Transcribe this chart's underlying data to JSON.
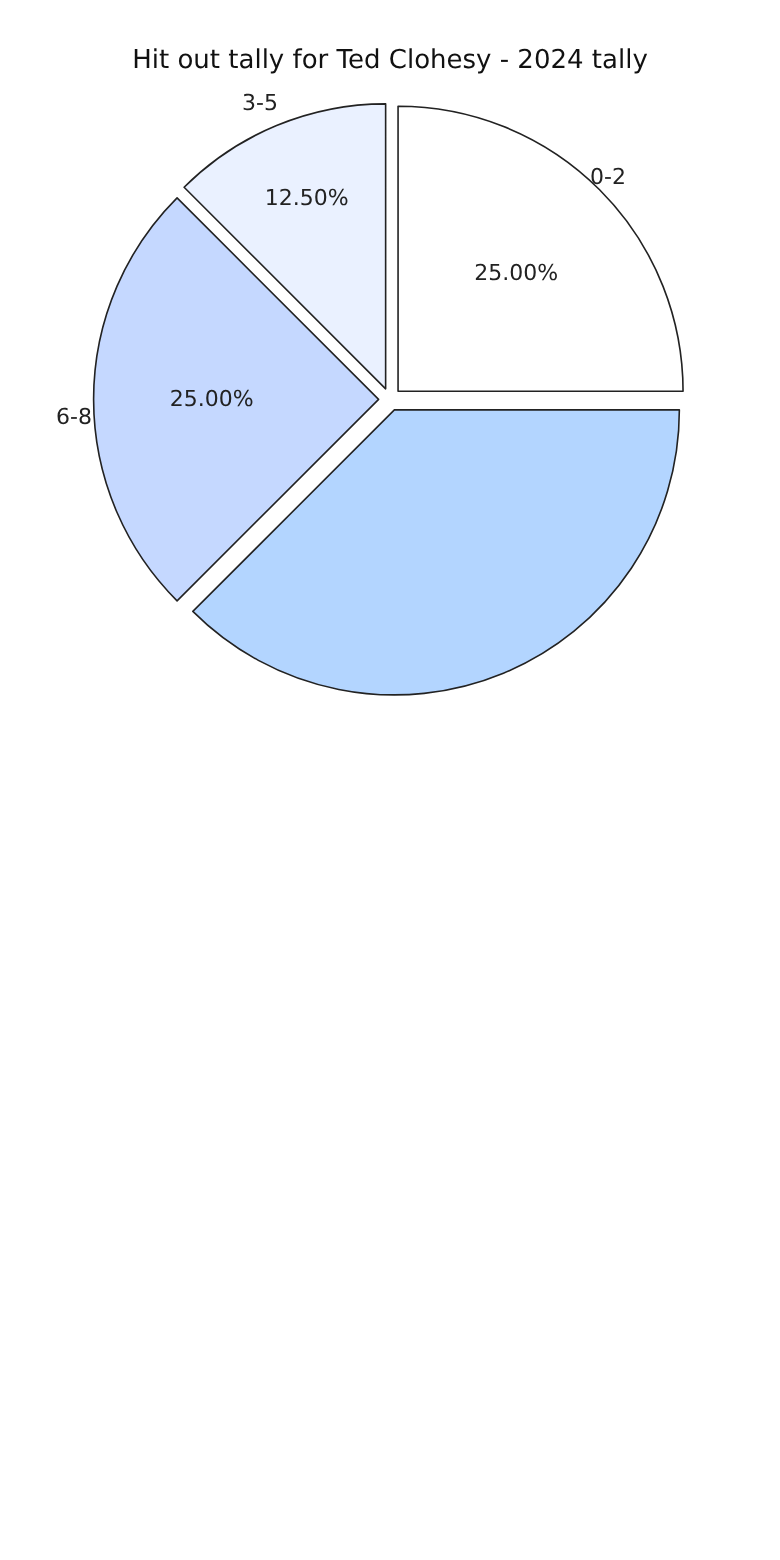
{
  "chart_data": {
    "type": "pie",
    "title": "Hit out tally for Ted Clohesy - 2024 tally",
    "categories": [
      "0-2",
      "3-5",
      "6-8",
      null
    ],
    "values": [
      25,
      12.5,
      25,
      37.5
    ],
    "colors": [
      "#ffffff",
      "#eaf1ff",
      "#c5d8ff",
      "#b3d5ff"
    ],
    "value_labels": [
      "25.00%",
      "12.50%",
      "25.00%",
      null
    ],
    "legend": false
  }
}
